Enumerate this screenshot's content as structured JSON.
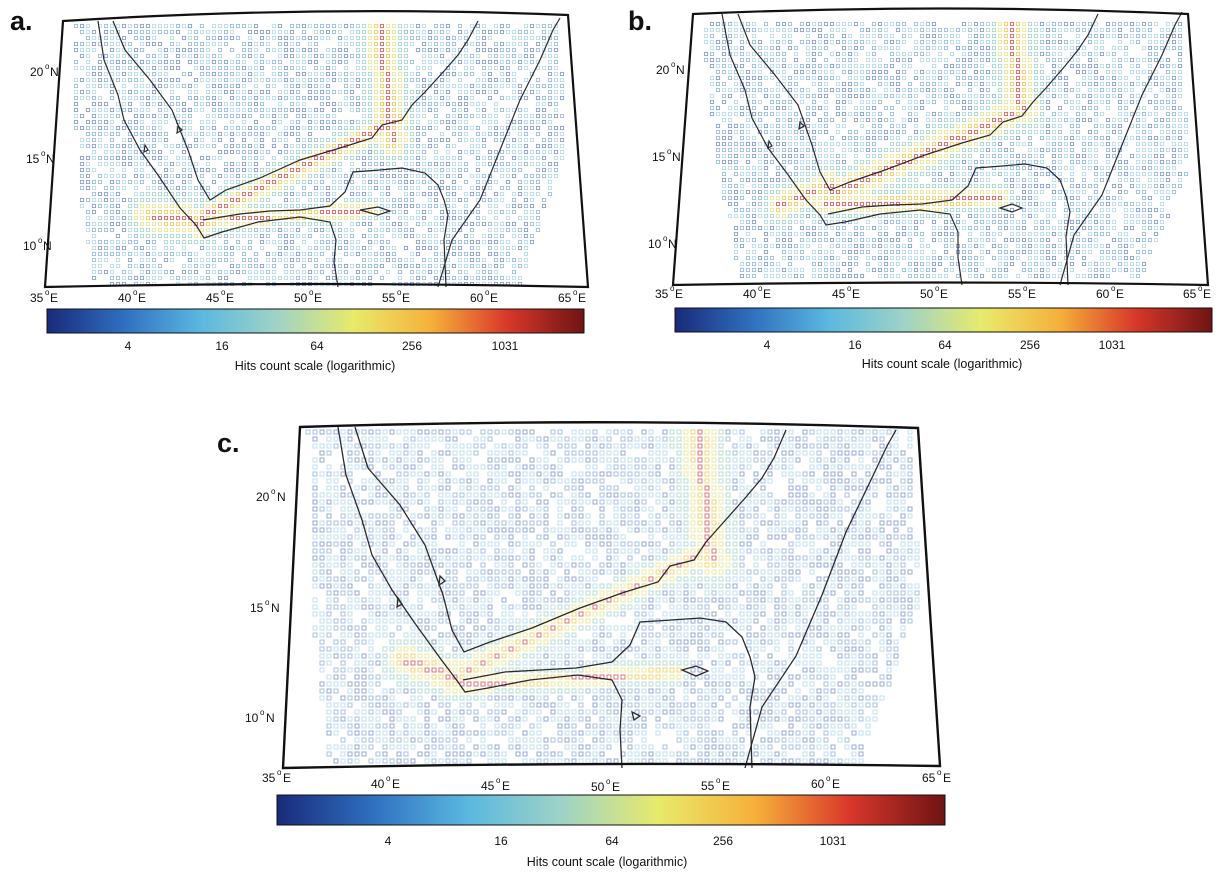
{
  "figure": {
    "panels": [
      {
        "id": "a",
        "letter": "a.",
        "lat_labels": [
          {
            "num": "20",
            "unit": "N"
          },
          {
            "num": "15",
            "unit": "N"
          },
          {
            "num": "10",
            "unit": "N"
          }
        ],
        "lon_labels": [
          {
            "num": "35",
            "unit": "E"
          },
          {
            "num": "40",
            "unit": "E"
          },
          {
            "num": "45",
            "unit": "E"
          },
          {
            "num": "50",
            "unit": "E"
          },
          {
            "num": "55",
            "unit": "E"
          },
          {
            "num": "60",
            "unit": "E"
          },
          {
            "num": "65",
            "unit": "E"
          }
        ],
        "colorbar": {
          "ticks": [
            "4",
            "16",
            "64",
            "256",
            "1031"
          ],
          "title": "Hits count scale (logarithmic)"
        }
      },
      {
        "id": "b",
        "letter": "b.",
        "lat_labels": [
          {
            "num": "20",
            "unit": "N"
          },
          {
            "num": "15",
            "unit": "N"
          },
          {
            "num": "10",
            "unit": "N"
          }
        ],
        "lon_labels": [
          {
            "num": "35",
            "unit": "E"
          },
          {
            "num": "40",
            "unit": "E"
          },
          {
            "num": "45",
            "unit": "E"
          },
          {
            "num": "50",
            "unit": "E"
          },
          {
            "num": "55",
            "unit": "E"
          },
          {
            "num": "60",
            "unit": "E"
          },
          {
            "num": "65",
            "unit": "E"
          }
        ],
        "colorbar": {
          "ticks": [
            "4",
            "16",
            "64",
            "256",
            "1031"
          ],
          "title": "Hits count scale (logarithmic)"
        }
      },
      {
        "id": "c",
        "letter": "c.",
        "lat_labels": [
          {
            "num": "20",
            "unit": "N"
          },
          {
            "num": "15",
            "unit": "N"
          },
          {
            "num": "10",
            "unit": "N"
          }
        ],
        "lon_labels": [
          {
            "num": "35",
            "unit": "E"
          },
          {
            "num": "40",
            "unit": "E"
          },
          {
            "num": "45",
            "unit": "E"
          },
          {
            "num": "50",
            "unit": "E"
          },
          {
            "num": "55",
            "unit": "E"
          },
          {
            "num": "60",
            "unit": "E"
          },
          {
            "num": "65",
            "unit": "E"
          }
        ],
        "colorbar": {
          "ticks": [
            "4",
            "16",
            "64",
            "256",
            "1031"
          ],
          "title": "Hits count scale (logarithmic)"
        }
      }
    ],
    "colormap": [
      "#1a2a7a",
      "#2f6fc0",
      "#5ab8e0",
      "#9fd3c6",
      "#e8ea6a",
      "#f6b13a",
      "#d9372a",
      "#6e1414"
    ]
  }
}
